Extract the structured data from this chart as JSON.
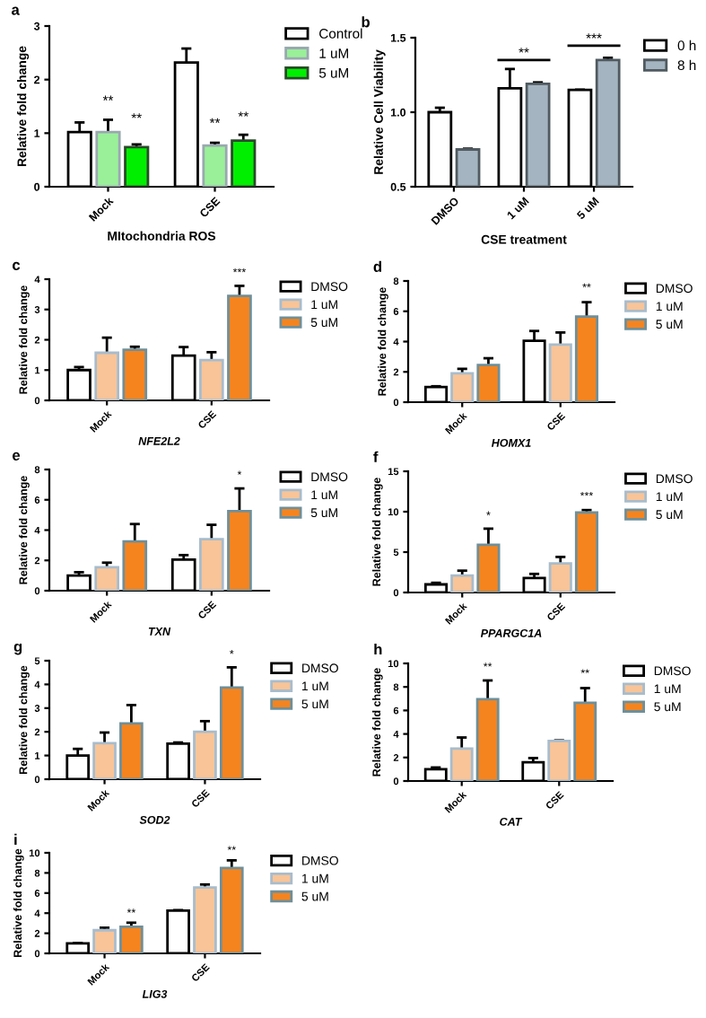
{
  "chart_data": [
    {
      "type": "bar",
      "title": "a",
      "xlabel": "MItochondria ROS",
      "ylabel": "Relative fold change",
      "categories": [
        "Mock",
        "CSE"
      ],
      "ylim": [
        0,
        3
      ],
      "yticks": [
        0,
        1,
        2,
        3
      ],
      "legend": "right",
      "grid": false,
      "series": [
        {
          "name": "Control",
          "color": "#ffffff",
          "values": [
            1.02,
            2.32
          ],
          "errors": [
            0.18,
            0.26
          ]
        },
        {
          "name": "1 uM",
          "color": "#99f099",
          "values": [
            1.02,
            0.77
          ],
          "errors": [
            0.23,
            0.05
          ]
        },
        {
          "name": "5 uM",
          "color": "#00ee00",
          "values": [
            0.74,
            0.86
          ],
          "errors": [
            0.05,
            0.11
          ]
        }
      ],
      "annotations": [
        "**",
        "**",
        "**",
        "**"
      ]
    },
    {
      "type": "bar",
      "title": "b",
      "xlabel": "CSE treatment",
      "ylabel": "Relative Cell Viability",
      "categories": [
        "DMSO",
        "1 uM",
        "5 uM"
      ],
      "ylim": [
        0.5,
        1.5
      ],
      "yticks": [
        0.5,
        {
          "value": 1.0,
          "label": "1.0"
        },
        1.5
      ],
      "legend": "right",
      "grid": false,
      "series": [
        {
          "name": "0 h",
          "color": "#ffffff",
          "values": [
            1.0,
            1.16,
            1.15
          ],
          "errors": [
            0.03,
            0.13,
            0
          ]
        },
        {
          "name": "8 h",
          "color": "#a4b4c0",
          "values": [
            0.75,
            1.19,
            1.35
          ],
          "errors": [
            0.005,
            0.01,
            0.015
          ]
        }
      ],
      "annotations": [
        "**",
        "***"
      ]
    },
    {
      "type": "bar",
      "title": "c",
      "xlabel": "NFE2L2",
      "ylabel": "Relative fold change",
      "categories": [
        "Mock",
        "CSE"
      ],
      "ylim": [
        0,
        4
      ],
      "yticks": [
        0,
        1,
        2,
        3,
        4
      ],
      "legend": "right",
      "grid": false,
      "series": [
        {
          "name": "DMSO",
          "color": "#ffffff",
          "values": [
            1.0,
            1.48
          ],
          "errors": [
            0.1,
            0.28
          ]
        },
        {
          "name": "1 uM",
          "color": "#f8c498",
          "values": [
            1.57,
            1.33
          ],
          "errors": [
            0.5,
            0.26
          ]
        },
        {
          "name": "5 uM",
          "color": "#f5841f",
          "values": [
            1.67,
            3.45
          ],
          "errors": [
            0.1,
            0.33
          ]
        }
      ],
      "annotations": [
        "***"
      ]
    },
    {
      "type": "bar",
      "title": "d",
      "xlabel": "HOMX1",
      "ylabel": "Relative fold change",
      "categories": [
        "Mock",
        "CSE"
      ],
      "ylim": [
        0,
        8
      ],
      "yticks": [
        0,
        2,
        4,
        6,
        8
      ],
      "legend": "right",
      "grid": false,
      "series": [
        {
          "name": "DMSO",
          "color": "#ffffff",
          "values": [
            1.0,
            4.05
          ],
          "errors": [
            0.05,
            0.65
          ]
        },
        {
          "name": "1 uM",
          "color": "#f8c498",
          "values": [
            1.9,
            3.8
          ],
          "errors": [
            0.3,
            0.8
          ]
        },
        {
          "name": "5 uM",
          "color": "#f5841f",
          "values": [
            2.45,
            5.65
          ],
          "errors": [
            0.45,
            0.95
          ]
        }
      ],
      "annotations": [
        "**"
      ]
    },
    {
      "type": "bar",
      "title": "e",
      "xlabel": "TXN",
      "ylabel": "Relative fold change",
      "categories": [
        "Mock",
        "CSE"
      ],
      "ylim": [
        0,
        8
      ],
      "yticks": [
        0,
        2,
        4,
        6,
        8
      ],
      "legend": "right",
      "grid": false,
      "series": [
        {
          "name": "DMSO",
          "color": "#ffffff",
          "values": [
            1.0,
            2.05
          ],
          "errors": [
            0.22,
            0.3
          ]
        },
        {
          "name": "1 uM",
          "color": "#f8c498",
          "values": [
            1.55,
            3.4
          ],
          "errors": [
            0.3,
            0.95
          ]
        },
        {
          "name": "5 uM",
          "color": "#f5841f",
          "values": [
            3.25,
            5.25
          ],
          "errors": [
            1.15,
            1.5
          ]
        }
      ],
      "annotations": [
        "*"
      ]
    },
    {
      "type": "bar",
      "title": "f",
      "xlabel": "PPARGC1A",
      "ylabel": "Relative fold change",
      "categories": [
        "Mock",
        "CSE"
      ],
      "ylim": [
        0,
        15
      ],
      "yticks": [
        0,
        5,
        10,
        15
      ],
      "legend": "right",
      "grid": false,
      "series": [
        {
          "name": "DMSO",
          "color": "#ffffff",
          "values": [
            1.0,
            1.8
          ],
          "errors": [
            0.2,
            0.5
          ]
        },
        {
          "name": "1 uM",
          "color": "#f8c498",
          "values": [
            2.1,
            3.6
          ],
          "errors": [
            0.6,
            0.8
          ]
        },
        {
          "name": "5 uM",
          "color": "#f5841f",
          "values": [
            5.9,
            9.9
          ],
          "errors": [
            2.0,
            0.3
          ]
        }
      ],
      "annotations": [
        "*",
        "***"
      ]
    },
    {
      "type": "bar",
      "title": "g",
      "xlabel": "SOD2",
      "ylabel": "Relative fold change",
      "categories": [
        "Mock",
        "CSE"
      ],
      "ylim": [
        0,
        5
      ],
      "yticks": [
        0,
        1,
        2,
        3,
        4,
        5
      ],
      "legend": "right",
      "grid": false,
      "series": [
        {
          "name": "DMSO",
          "color": "#ffffff",
          "values": [
            1.0,
            1.5
          ],
          "errors": [
            0.28,
            0.05
          ]
        },
        {
          "name": "1 uM",
          "color": "#f8c498",
          "values": [
            1.52,
            2.0
          ],
          "errors": [
            0.45,
            0.45
          ]
        },
        {
          "name": "5 uM",
          "color": "#f5841f",
          "values": [
            2.35,
            3.87
          ],
          "errors": [
            0.78,
            0.85
          ]
        }
      ],
      "annotations": [
        "*"
      ]
    },
    {
      "type": "bar",
      "title": "h",
      "xlabel": "CAT",
      "ylabel": "Relative fold change",
      "categories": [
        "Mock",
        "CSE"
      ],
      "ylim": [
        0,
        10
      ],
      "yticks": [
        0,
        2,
        4,
        6,
        8,
        10
      ],
      "legend": "right",
      "grid": false,
      "series": [
        {
          "name": "DMSO",
          "color": "#ffffff",
          "values": [
            1.0,
            1.6
          ],
          "errors": [
            0.15,
            0.35
          ]
        },
        {
          "name": "1 uM",
          "color": "#f8c498",
          "values": [
            2.75,
            3.4
          ],
          "errors": [
            0.95,
            0.05
          ]
        },
        {
          "name": "5 uM",
          "color": "#f5841f",
          "values": [
            6.95,
            6.65
          ],
          "errors": [
            1.6,
            1.25
          ]
        }
      ],
      "annotations": [
        "**",
        "**"
      ]
    },
    {
      "type": "bar",
      "title": "i",
      "xlabel": "LIG3",
      "ylabel": "Relative fold change",
      "categories": [
        "Mock",
        "CSE"
      ],
      "ylim": [
        0,
        10
      ],
      "yticks": [
        0,
        2,
        4,
        6,
        8,
        10
      ],
      "legend": "right",
      "grid": false,
      "series": [
        {
          "name": "DMSO",
          "color": "#ffffff",
          "values": [
            1.0,
            4.25
          ],
          "errors": [
            0,
            0.05
          ]
        },
        {
          "name": "1 uM",
          "color": "#f8c498",
          "values": [
            2.3,
            6.55
          ],
          "errors": [
            0.25,
            0.3
          ]
        },
        {
          "name": "5 uM",
          "color": "#f5841f",
          "values": [
            2.65,
            8.5
          ],
          "errors": [
            0.4,
            0.75
          ]
        }
      ],
      "annotations": [
        "**",
        "**"
      ]
    }
  ]
}
